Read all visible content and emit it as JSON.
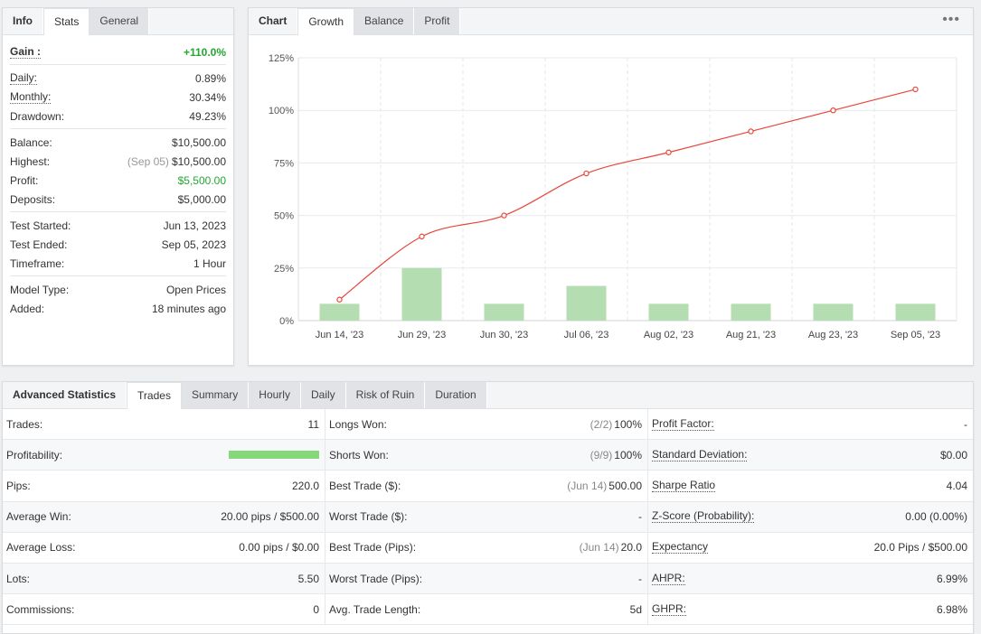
{
  "info": {
    "tabs": [
      "Info",
      "Stats",
      "General"
    ],
    "gain": {
      "label": "Gain :",
      "value": "+110.0%"
    },
    "group1": [
      {
        "label": "Daily:",
        "value": "0.89%"
      },
      {
        "label": "Monthly:",
        "value": "30.34%"
      },
      {
        "label": "Drawdown:",
        "value": "49.23%"
      }
    ],
    "group2": [
      {
        "label": "Balance:",
        "value": "$10,500.00"
      },
      {
        "label": "Highest:",
        "sub": "(Sep 05)",
        "value": "$10,500.00"
      },
      {
        "label": "Profit:",
        "value": "$5,500.00"
      },
      {
        "label": "Deposits:",
        "value": "$5,000.00"
      }
    ],
    "group3": [
      {
        "label": "Test Started:",
        "value": "Jun 13, 2023"
      },
      {
        "label": "Test Ended:",
        "value": "Sep 05, 2023"
      },
      {
        "label": "Timeframe:",
        "value": "1 Hour"
      }
    ],
    "group4": [
      {
        "label": "Model Type:",
        "value": "Open Prices"
      },
      {
        "label": "Added:",
        "value": "18 minutes ago"
      }
    ]
  },
  "chart_panel": {
    "tabs": [
      "Chart",
      "Growth",
      "Balance",
      "Profit"
    ],
    "menu": "•••"
  },
  "chart_data": {
    "type": "bar",
    "categories": [
      "Jun 14, '23",
      "Jun 29, '23",
      "Jun 30, '23",
      "Jul 06, '23",
      "Aug 02, '23",
      "Aug 21, '23",
      "Aug 23, '23",
      "Sep 05, '23"
    ],
    "series": [
      {
        "type": "bar",
        "values": [
          8,
          25,
          8,
          16.5,
          8,
          8,
          8,
          8
        ],
        "color": "#b4deb2"
      },
      {
        "type": "line",
        "values": [
          10,
          40,
          50,
          70,
          80,
          90,
          100,
          110
        ],
        "color": "#e8463a"
      }
    ],
    "ylim": [
      0,
      125
    ],
    "yticks": [
      "0%",
      "25%",
      "50%",
      "75%",
      "100%",
      "125%"
    ],
    "grid": true
  },
  "adv": {
    "tabs": [
      "Advanced Statistics",
      "Trades",
      "Summary",
      "Hourly",
      "Daily",
      "Risk of Ruin",
      "Duration"
    ],
    "col1": [
      {
        "label": "Trades:",
        "value": "11"
      },
      {
        "label": "Profitability:",
        "bar": 1.0
      },
      {
        "label": "Pips:",
        "value": "220.0"
      },
      {
        "label": "Average Win:",
        "value": "20.00 pips / $500.00"
      },
      {
        "label": "Average Loss:",
        "value": "0.00 pips / $0.00"
      },
      {
        "label": "Lots:",
        "value": "5.50"
      },
      {
        "label": "Commissions:",
        "value": "0"
      }
    ],
    "col2": [
      {
        "label": "Longs Won:",
        "sub": "(2/2)",
        "value": "100%"
      },
      {
        "label": "Shorts Won:",
        "sub": "(9/9)",
        "value": "100%"
      },
      {
        "label": "Best Trade ($):",
        "sub": "(Jun 14)",
        "value": "500.00"
      },
      {
        "label": "Worst Trade ($):",
        "value": "-"
      },
      {
        "label": "Best Trade (Pips):",
        "sub": "(Jun 14)",
        "value": "20.0"
      },
      {
        "label": "Worst Trade (Pips):",
        "value": "-"
      },
      {
        "label": "Avg. Trade Length:",
        "value": "5d"
      }
    ],
    "col3": [
      {
        "label": "Profit Factor:",
        "value": "-"
      },
      {
        "label": "Standard Deviation:",
        "value": "$0.00"
      },
      {
        "label": "Sharpe Ratio",
        "value": "4.04"
      },
      {
        "label": "Z-Score (Probability):",
        "value": "0.00 (0.00%)"
      },
      {
        "label": "Expectancy",
        "value": "20.0 Pips / $500.00"
      },
      {
        "label": "AHPR:",
        "value": "6.99%"
      },
      {
        "label": "GHPR:",
        "value": "6.98%"
      }
    ]
  }
}
